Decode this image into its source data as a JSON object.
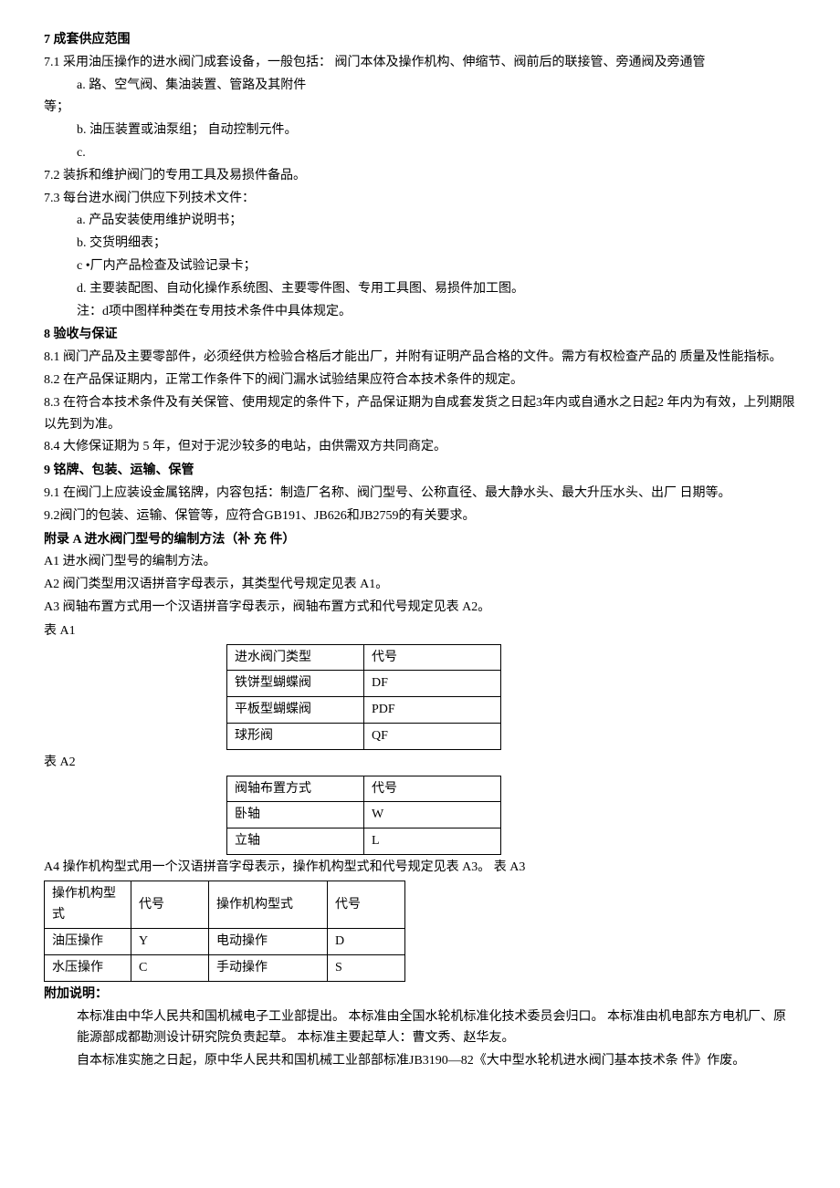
{
  "s7": {
    "title": "7 成套供应范围",
    "p1": "7.1 采用油压操作的进水阀门成套设备，一般包括：  阀门本体及操作机构、伸缩节、阀前后的联接管、旁通阀及旁通管",
    "a": "a.  路、空气阀、集油装置、管路及其附件",
    "deng": "等；",
    "b": "b.  油压装置或油泵组；  自动控制元件。",
    "c": "c.",
    "p2": "7.2   装拆和维护阀门的专用工具及易损件备品。",
    "p3": "7.3   每台进水阀门供应下列技术文件：",
    "p3a": "a.  产品安装使用维护说明书；",
    "p3b": "b.  交货明细表；",
    "p3c": "c •厂内产品检查及试验记录卡；",
    "p3d": "d. 主要装配图、自动化操作系统图、主要零件图、专用工具图、易损件加工图。",
    "p3note": "注：d项中图样种类在专用技术条件中具体规定。"
  },
  "s8": {
    "title": "8   验收与保证",
    "p1": "8.1   阀门产品及主要零部件，必须经供方检验合格后才能出厂，并附有证明产品合格的文件。需方有权检查产品的 质量及性能指标。",
    "p2": "8.2   在产品保证期内，正常工作条件下的阀门漏水试验结果应符合本技术条件的规定。",
    "p3": "8.3   在符合本技术条件及有关保管、使用规定的条件下，产品保证期为自成套发货之日起3年内或自通水之日起2 年内为有效，上列期限以先到为准。",
    "p4": "8.4   大修保证期为 5 年，但对于泥沙较多的电站，由供需双方共同商定。"
  },
  "s9": {
    "title": "9   铭牌、包装、运输、保管",
    "p1": "9.1 在阀门上应装设金属铭牌，内容包括：制造厂名称、阀门型号、公称直径、最大静水头、最大升压水头、出厂 日期等。",
    "p2": "9.2阀门的包装、运输、保管等，应符合GB191、JB626和JB2759的有关要求。"
  },
  "appendixA": {
    "title": "附录  A 进水阀门型号的编制方法（补  充  件）",
    "a1": "A1 进水阀门型号的编制方法。",
    "a2": "A2 阀门类型用汉语拼音字母表示，其类型代号规定见表 A1。",
    "a3": "A3 阀轴布置方式用一个汉语拼音字母表示，阀轴布置方式和代号规定见表 A2。",
    "tableA1Label": "表 A1",
    "tableA1": {
      "headers": [
        "进水阀门类型",
        "代号"
      ],
      "rows": [
        [
          "铁饼型蝴蝶阀",
          "DF"
        ],
        [
          "平板型蝴蝶阀",
          "PDF"
        ],
        [
          "球形阀",
          "QF"
        ]
      ]
    },
    "tableA2Label": "表 A2",
    "tableA2": {
      "headers": [
        "阀轴布置方式",
        "代号"
      ],
      "rows": [
        [
          "卧轴",
          "W"
        ],
        [
          "立轴",
          "L"
        ]
      ]
    },
    "a4": "A4 操作机构型式用一个汉语拼音字母表示，操作机构型式和代号规定见表 A3。  表 A3",
    "tableA3": {
      "headers": [
        "操作机构型式",
        "代号",
        "操作机构型式",
        "代号"
      ],
      "rows": [
        [
          "油压操作",
          "Y",
          "电动操作",
          "D"
        ],
        [
          "水压操作",
          "C",
          "手动操作",
          "S"
        ]
      ]
    }
  },
  "addenda": {
    "title": "附加说明：",
    "p1": "本标准由中华人民共和国机械电子工业部提出。 本标准由全国水轮机标准化技术委员会归口。 本标准由机电部东方电机厂、原能源部成都勘测设计研究院负责起草。 本标准主要起草人：曹文秀、赵华友。",
    "p2": "自本标准实施之日起，原中华人民共和国机械工业部部标准JB3190—82《大中型水轮机进水阀门基本技术条 件》作废。"
  }
}
